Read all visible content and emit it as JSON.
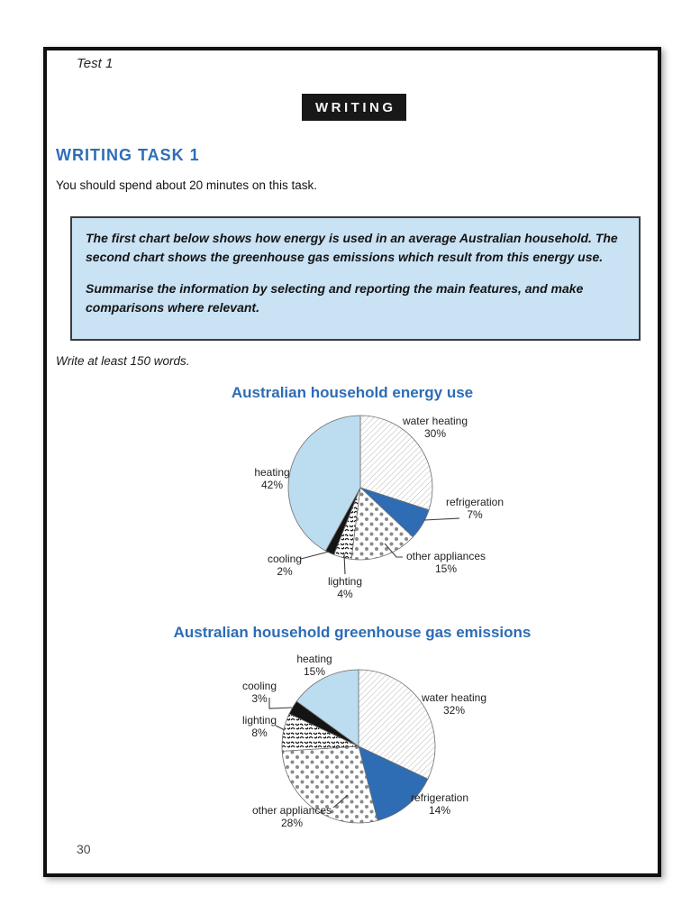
{
  "page": {
    "test_label": "Test 1",
    "section_banner": "WRITING",
    "task_heading": "WRITING TASK 1",
    "time_instruction": "You should spend about 20 minutes on this task.",
    "prompt": {
      "paragraph1": "The first chart below shows how energy is used in an average Australian household. The second chart shows the greenhouse gas emissions which result from this energy use.",
      "paragraph2": "Summarise the information by selecting and reporting the main features, and make comparisons where relevant."
    },
    "word_count_instruction": "Write at least 150 words.",
    "page_number": "30"
  },
  "colors": {
    "heading_blue": "#2e6db8",
    "title_blue": "#2c6cb6",
    "prompt_box_bg": "#c9e2f4",
    "slice_light_blue": "#bcdcf0",
    "slice_dark_blue": "#2e6cb4",
    "slice_black": "#141414",
    "banner_bg": "#181818"
  },
  "chart_data": [
    {
      "type": "pie",
      "title": "Australian household energy use",
      "start_angle_deg": 0,
      "direction": "clockwise",
      "slices": [
        {
          "label": "water heating",
          "value": 30,
          "display": "30%",
          "fill": "hatch"
        },
        {
          "label": "refrigeration",
          "value": 7,
          "display": "7%",
          "fill": "dark-blue"
        },
        {
          "label": "other appliances",
          "value": 15,
          "display": "15%",
          "fill": "dots"
        },
        {
          "label": "lighting",
          "value": 4,
          "display": "4%",
          "fill": "squiggle"
        },
        {
          "label": "cooling",
          "value": 2,
          "display": "2%",
          "fill": "black"
        },
        {
          "label": "heating",
          "value": 42,
          "display": "42%",
          "fill": "light-blue"
        }
      ]
    },
    {
      "type": "pie",
      "title": "Australian household greenhouse gas emissions",
      "start_angle_deg": 0,
      "direction": "clockwise",
      "slices": [
        {
          "label": "water heating",
          "value": 32,
          "display": "32%",
          "fill": "hatch"
        },
        {
          "label": "refrigeration",
          "value": 14,
          "display": "14%",
          "fill": "dark-blue"
        },
        {
          "label": "other appliances",
          "value": 28,
          "display": "28%",
          "fill": "dots"
        },
        {
          "label": "lighting",
          "value": 8,
          "display": "8%",
          "fill": "squiggle"
        },
        {
          "label": "cooling",
          "value": 3,
          "display": "3%",
          "fill": "black"
        },
        {
          "label": "heating",
          "value": 15,
          "display": "15%",
          "fill": "light-blue"
        }
      ]
    }
  ]
}
